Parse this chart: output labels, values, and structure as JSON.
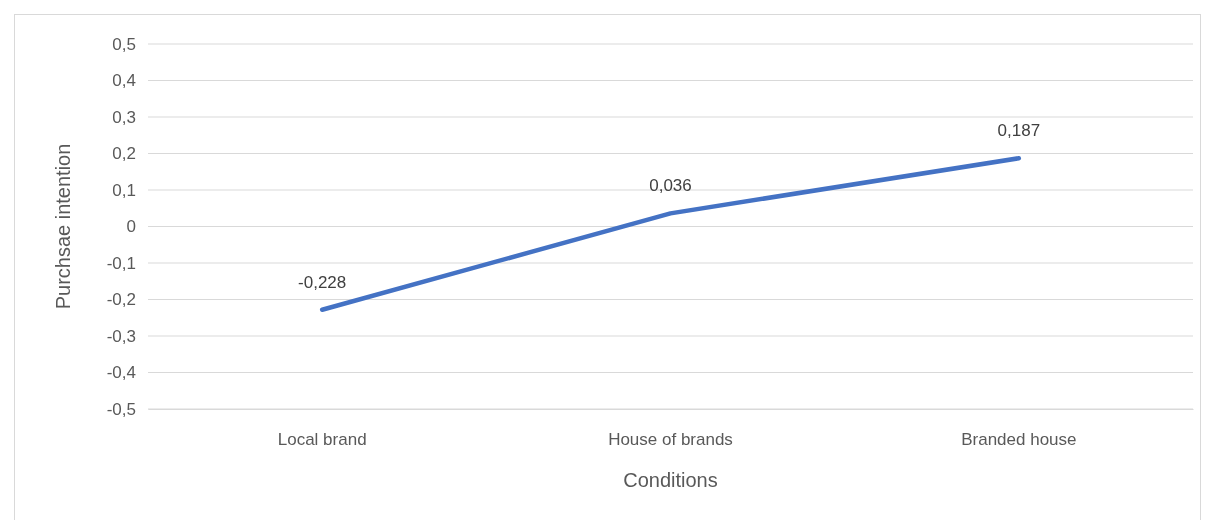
{
  "chart_data": {
    "type": "line",
    "xlabel": "Conditions",
    "ylabel": "Purchsae intention",
    "categories": [
      "Local brand",
      "House of brands",
      "Branded house"
    ],
    "series": [
      {
        "color": "#4472c4",
        "values": [
          -0.228,
          0.036,
          0.187
        ],
        "value_labels": [
          "-0,228",
          "0,036",
          "0,187"
        ]
      }
    ],
    "ylim": [
      -0.5,
      0.5
    ],
    "yticks": [
      {
        "value": -0.5,
        "label": "-0,5"
      },
      {
        "value": -0.4,
        "label": "-0,4"
      },
      {
        "value": -0.3,
        "label": "-0,3"
      },
      {
        "value": -0.2,
        "label": "-0,2"
      },
      {
        "value": -0.1,
        "label": "-0,1"
      },
      {
        "value": 0,
        "label": "0"
      },
      {
        "value": 0.1,
        "label": "0,1"
      },
      {
        "value": 0.2,
        "label": "0,2"
      },
      {
        "value": 0.3,
        "label": "0,3"
      },
      {
        "value": 0.4,
        "label": "0,4"
      },
      {
        "value": 0.5,
        "label": "0,5"
      }
    ],
    "grid": "y",
    "marker": "none",
    "line_style": "solid"
  }
}
